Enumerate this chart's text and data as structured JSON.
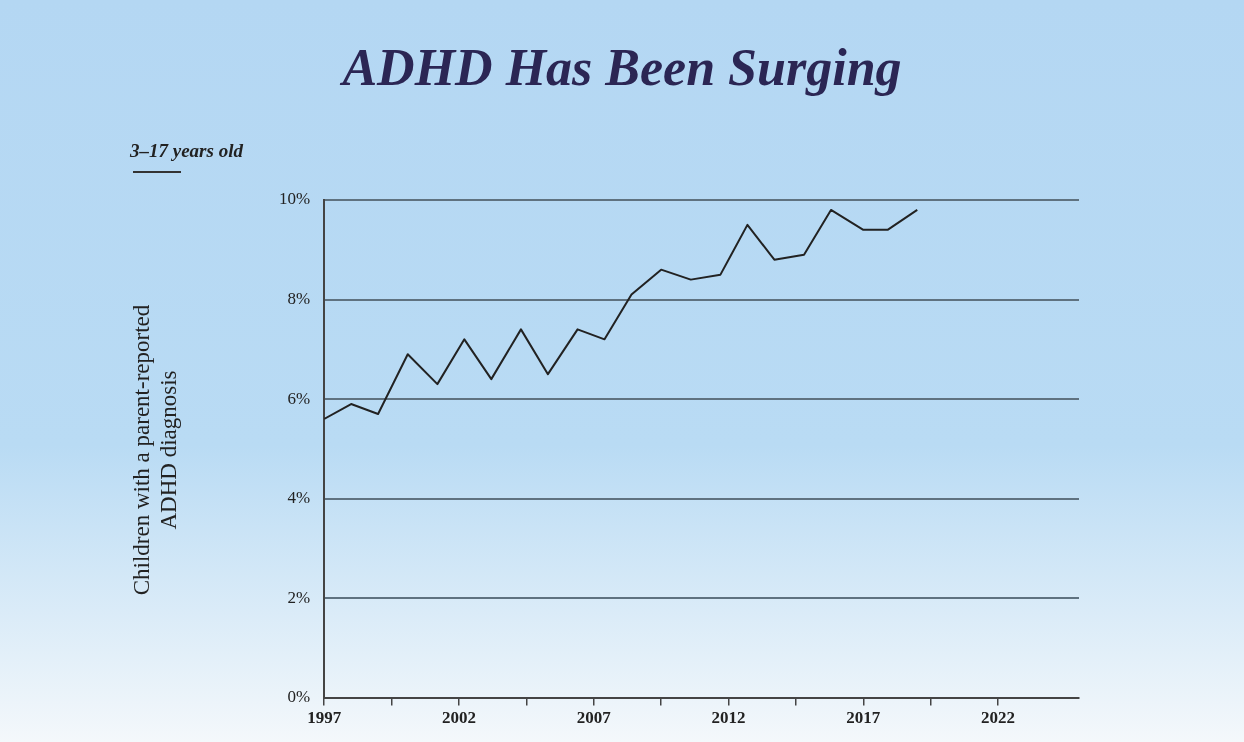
{
  "chart_data": {
    "type": "line",
    "title": "ADHD Has Been Surging",
    "subtitle": "3–17 years old",
    "ylabel": "Children with a parent-reported ADHD diagnosis",
    "series": [
      {
        "color": "#222222",
        "x": [
          1997.0,
          1998.0,
          1999.0,
          2000.1,
          2001.2,
          2002.2,
          2003.2,
          2004.3,
          2005.3,
          2006.4,
          2007.4,
          2008.4,
          2009.5,
          2010.6,
          2011.7,
          2012.7,
          2013.7,
          2014.8,
          2015.8,
          2017.0,
          2017.9,
          2019.0
        ],
        "values": [
          5.6,
          5.9,
          5.7,
          6.9,
          6.3,
          7.2,
          6.4,
          7.4,
          6.5,
          7.4,
          7.2,
          8.1,
          8.6,
          8.4,
          8.5,
          9.5,
          8.8,
          8.9,
          9.8,
          9.4,
          9.4,
          9.8
        ]
      }
    ],
    "xlim": [
      1997,
      2025
    ],
    "xticks": [
      1997,
      {
        "value": 1999.5,
        "label": null
      },
      2002,
      {
        "value": 2004.5,
        "label": null
      },
      2007,
      {
        "value": 2009.5,
        "label": null
      },
      2012,
      {
        "value": 2014.5,
        "label": null
      },
      2017,
      {
        "value": 2019.5,
        "label": null
      },
      2022
    ],
    "ylim": [
      0,
      10
    ],
    "yticks": [
      {
        "value": 0,
        "label": "0%"
      },
      {
        "value": 2,
        "label": "2%"
      },
      {
        "value": 4,
        "label": "4%"
      },
      {
        "value": 6,
        "label": "6%"
      },
      {
        "value": 8,
        "label": "8%"
      },
      {
        "value": 10,
        "label": "10%"
      }
    ],
    "grid": "y",
    "marker": "none",
    "line_style": "solid",
    "legend": false
  }
}
